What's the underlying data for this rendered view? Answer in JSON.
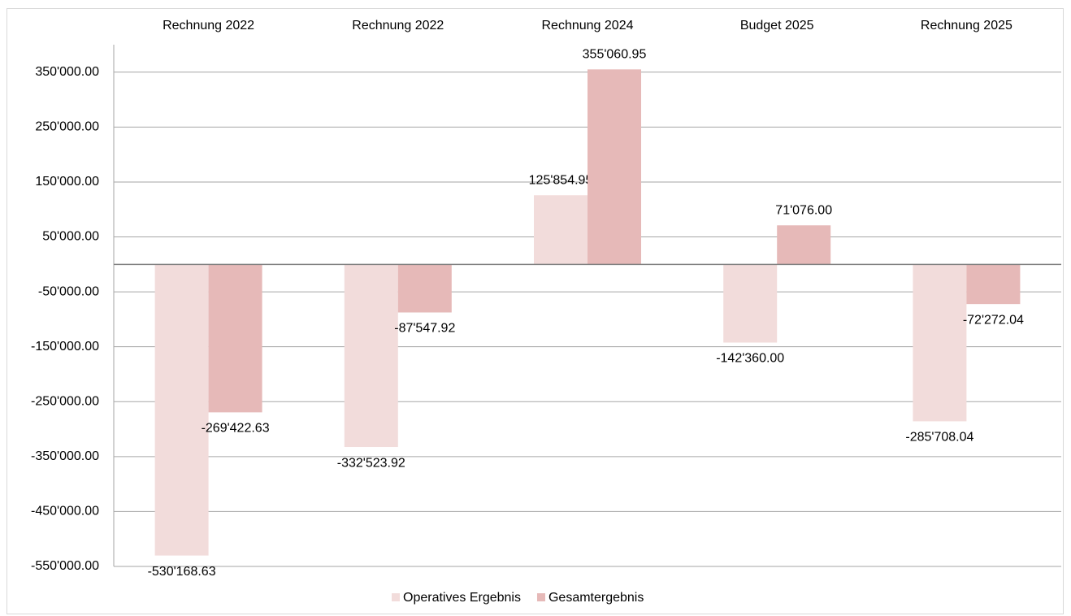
{
  "chart_data": {
    "type": "bar",
    "categories": [
      "Rechnung 2022",
      "Rechnung 2022",
      "Rechnung 2024",
      "Budget 2025",
      "Rechnung 2025"
    ],
    "series": [
      {
        "name": "Operatives Ergebnis",
        "color": "#f2dcdb",
        "values": [
          -530168.63,
          -332523.92,
          125854.95,
          -142360.0,
          -285708.04
        ],
        "value_labels": [
          "-530'168.63",
          "-332'523.92",
          "125'854.95",
          "-142'360.00",
          "-285'708.04"
        ]
      },
      {
        "name": "Gesamtergebnis",
        "color": "#e6b9b8",
        "values": [
          -269422.63,
          -87547.92,
          355060.95,
          71076.0,
          -72272.04
        ],
        "value_labels": [
          "-269'422.63",
          "-87'547.92",
          "355'060.95",
          "71'076.00",
          "-72'272.04"
        ]
      }
    ],
    "ylim": [
      -550000,
      400000
    ],
    "yticks": [
      {
        "value": 350000,
        "label": "350'000.00"
      },
      {
        "value": 250000,
        "label": "250'000.00"
      },
      {
        "value": 150000,
        "label": "150'000.00"
      },
      {
        "value": 50000,
        "label": "50'000.00"
      },
      {
        "value": -50000,
        "label": "-50'000.00"
      },
      {
        "value": -150000,
        "label": "-150'000.00"
      },
      {
        "value": -250000,
        "label": "-250'000.00"
      },
      {
        "value": -350000,
        "label": "-350'000.00"
      },
      {
        "value": -450000,
        "label": "-450'000.00"
      },
      {
        "value": -550000,
        "label": "-550'000.00"
      }
    ],
    "grid": true,
    "legend": "bottom"
  }
}
